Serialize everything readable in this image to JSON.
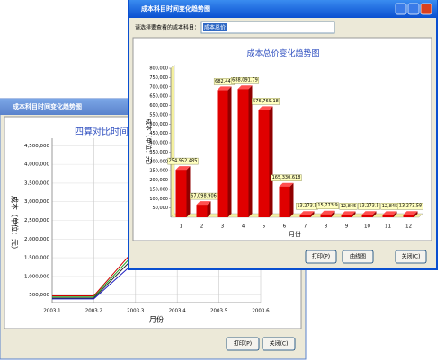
{
  "back_window": {
    "title": "成本科目时间变化趋势图",
    "buttons": [
      "打印(P)",
      "关闭(C)"
    ]
  },
  "front_window": {
    "title": "成本科目时间变化趋势图",
    "prompt": "请选择要查看的成本科目：",
    "selected": "成本总价",
    "buttons": [
      "打印(P)",
      "曲线图",
      "关闭(C)"
    ]
  },
  "chart_data": [
    {
      "type": "line",
      "title": "四算对比时间",
      "x_label": "月份",
      "y_label": "成本（单位：元）",
      "categories": [
        "2003.1",
        "2003.2",
        "2003.3",
        "2003.4",
        "2003.5",
        "2003.6"
      ],
      "series": [
        {
          "color": "#d00000",
          "values": [
            480000,
            480000,
            1750000,
            null,
            null,
            null
          ]
        },
        {
          "color": "#20a020",
          "values": [
            450000,
            450000,
            1650000,
            null,
            null,
            null
          ]
        },
        {
          "color": "#303030",
          "values": [
            420000,
            420000,
            1550000,
            null,
            null,
            null
          ]
        },
        {
          "color": "#2020c0",
          "values": [
            400000,
            400000,
            1400000,
            null,
            null,
            null
          ]
        }
      ],
      "ylim": [
        300000,
        4700000
      ],
      "yticks": [
        {
          "value": 500000,
          "label": "500,000"
        },
        {
          "value": 1000000,
          "label": "1,000,000"
        },
        {
          "value": 1500000,
          "label": "1,500,000"
        },
        {
          "value": 2000000,
          "label": "2,000,000"
        },
        {
          "value": 2500000,
          "label": "2,500,000"
        },
        {
          "value": 3000000,
          "label": "3,000,000"
        },
        {
          "value": 3500000,
          "label": "3,500,000"
        },
        {
          "value": 4000000,
          "label": "4,000,000"
        },
        {
          "value": 4500000,
          "label": "4,500,000"
        }
      ],
      "grid": true
    },
    {
      "type": "bar",
      "title": "成本总价变化趋势图",
      "x_label": "月份",
      "y_label": "成本（单位：元）",
      "categories": [
        "1",
        "2",
        "3",
        "4",
        "5",
        "6",
        "7",
        "8",
        "9",
        "10",
        "11",
        "12"
      ],
      "values": [
        254952.485,
        67098.906,
        682442,
        688091.79,
        576769.18,
        165330.618,
        13273.5,
        15773.9,
        12845,
        13273.5,
        12845,
        13273.58
      ],
      "value_labels": [
        "254,952.485",
        "67,098.906",
        "682,442",
        "688,091.79",
        "576,769.18",
        "165,330.618",
        "13,273.5",
        "15,773.9",
        "12,845",
        "13,273.5",
        "12,845",
        "13,273.58"
      ],
      "color": "#e00000",
      "ylim": [
        0,
        800000
      ],
      "yticks": [
        {
          "value": 50000,
          "label": "50,000"
        },
        {
          "value": 100000,
          "label": "100,000"
        },
        {
          "value": 150000,
          "label": "150,000"
        },
        {
          "value": 200000,
          "label": "200,000"
        },
        {
          "value": 250000,
          "label": "250,000"
        },
        {
          "value": 300000,
          "label": "300,000"
        },
        {
          "value": 350000,
          "label": "350,000"
        },
        {
          "value": 400000,
          "label": "400,000"
        },
        {
          "value": 450000,
          "label": "450,000"
        },
        {
          "value": 500000,
          "label": "500,000"
        },
        {
          "value": 550000,
          "label": "550,000"
        },
        {
          "value": 600000,
          "label": "600,000"
        },
        {
          "value": 650000,
          "label": "650,000"
        },
        {
          "value": 700000,
          "label": "700,000"
        },
        {
          "value": 750000,
          "label": "750,000"
        },
        {
          "value": 800000,
          "label": "800,000"
        }
      ],
      "grid": false
    }
  ]
}
